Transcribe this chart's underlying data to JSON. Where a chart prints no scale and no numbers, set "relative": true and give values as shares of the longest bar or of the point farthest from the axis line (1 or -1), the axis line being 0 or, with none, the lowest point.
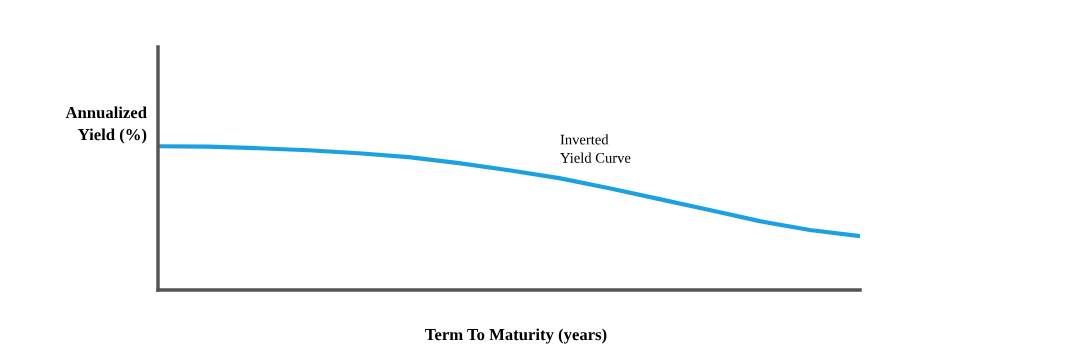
{
  "chart_data": {
    "type": "line",
    "relative": true,
    "xlabel": "Term To Maturity (years)",
    "ylabel": "Annualized\nYield (%)",
    "annotations": [
      "Inverted\nYield Curve"
    ],
    "categories": [
      null,
      null,
      null,
      null,
      null,
      null,
      null,
      null,
      null,
      null,
      null,
      null,
      null,
      null,
      null
    ],
    "series": [
      {
        "color": "#1ba1e2",
        "values": [
          1,
          0.997,
          0.986,
          0.972,
          0.951,
          0.924,
          0.882,
          0.833,
          0.778,
          0.708,
          0.632,
          0.556,
          0.479,
          0.417,
          0.375
        ]
      }
    ],
    "marker": "none",
    "line_style": "solid"
  }
}
